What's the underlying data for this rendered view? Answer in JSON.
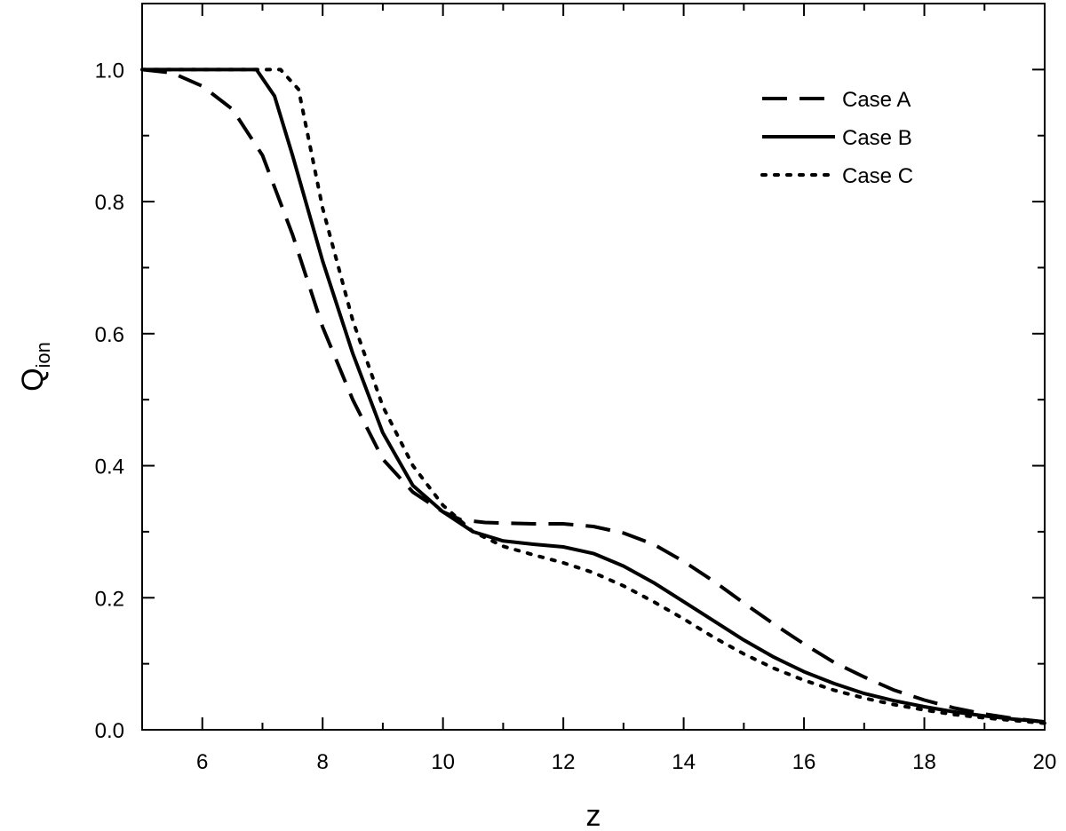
{
  "chart_data": {
    "type": "line",
    "title": "",
    "xlabel": "z",
    "ylabel": "Q",
    "ylabel_sub": "ion",
    "xlim": [
      5,
      20
    ],
    "ylim": [
      0.0,
      1.1
    ],
    "xticks": [
      6,
      8,
      10,
      12,
      14,
      16,
      18,
      20
    ],
    "xtick_labels": [
      "6",
      "8",
      "10",
      "12",
      "14",
      "16",
      "18",
      "20"
    ],
    "yticks": [
      0.0,
      0.2,
      0.4,
      0.6,
      0.8,
      1.0
    ],
    "ytick_labels": [
      "0.0",
      "0.2",
      "0.4",
      "0.6",
      "0.8",
      "1.0"
    ],
    "grid": false,
    "legend_position": "top-right",
    "line_color": "#000000",
    "series": [
      {
        "name": "Case A",
        "style": "dashed",
        "x": [
          5.0,
          5.5,
          6.0,
          6.5,
          7.0,
          7.5,
          8.0,
          8.5,
          9.0,
          9.5,
          10.0,
          10.3,
          10.7,
          11.0,
          11.5,
          12.0,
          12.5,
          13.0,
          13.5,
          14.0,
          14.5,
          15.0,
          15.5,
          16.0,
          16.5,
          17.0,
          17.5,
          18.0,
          18.5,
          19.0,
          19.5,
          20.0
        ],
        "y": [
          1.0,
          0.995,
          0.975,
          0.94,
          0.87,
          0.75,
          0.61,
          0.5,
          0.41,
          0.36,
          0.33,
          0.318,
          0.314,
          0.313,
          0.312,
          0.312,
          0.308,
          0.298,
          0.281,
          0.255,
          0.225,
          0.192,
          0.16,
          0.13,
          0.102,
          0.08,
          0.06,
          0.045,
          0.033,
          0.024,
          0.017,
          0.012
        ]
      },
      {
        "name": "Case B",
        "style": "solid",
        "x": [
          5.0,
          5.5,
          6.0,
          6.5,
          6.9,
          7.2,
          7.5,
          8.0,
          8.5,
          9.0,
          9.5,
          10.0,
          10.5,
          11.0,
          11.5,
          12.0,
          12.5,
          13.0,
          13.5,
          14.0,
          14.5,
          15.0,
          15.5,
          16.0,
          16.5,
          17.0,
          17.5,
          18.0,
          18.5,
          19.0,
          19.5,
          20.0
        ],
        "y": [
          1.0,
          1.0,
          1.0,
          1.0,
          1.0,
          0.96,
          0.87,
          0.71,
          0.57,
          0.45,
          0.37,
          0.33,
          0.3,
          0.286,
          0.281,
          0.277,
          0.267,
          0.248,
          0.223,
          0.194,
          0.165,
          0.136,
          0.11,
          0.088,
          0.07,
          0.055,
          0.044,
          0.035,
          0.027,
          0.021,
          0.016,
          0.012
        ]
      },
      {
        "name": "Case C",
        "style": "dotted",
        "x": [
          5.0,
          5.5,
          6.0,
          6.5,
          7.0,
          7.3,
          7.6,
          8.0,
          8.5,
          9.0,
          9.5,
          10.0,
          10.5,
          11.0,
          11.5,
          12.0,
          12.5,
          13.0,
          13.5,
          14.0,
          14.5,
          15.0,
          15.5,
          16.0,
          16.5,
          17.0,
          17.5,
          18.0,
          18.5,
          19.0,
          19.5,
          20.0
        ],
        "y": [
          1.0,
          1.0,
          1.0,
          1.0,
          1.0,
          1.0,
          0.97,
          0.79,
          0.62,
          0.49,
          0.4,
          0.34,
          0.3,
          0.278,
          0.265,
          0.253,
          0.238,
          0.218,
          0.194,
          0.168,
          0.14,
          0.115,
          0.093,
          0.075,
          0.06,
          0.048,
          0.038,
          0.03,
          0.023,
          0.018,
          0.014,
          0.01
        ]
      }
    ]
  }
}
